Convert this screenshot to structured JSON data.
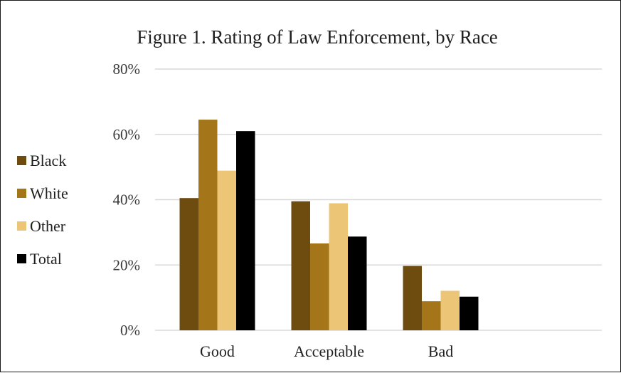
{
  "chart_data": {
    "type": "bar",
    "title": "Figure 1. Rating of Law Enforcement, by Race",
    "xlabel": "",
    "ylabel": "",
    "categories": [
      "Good",
      "Acceptable",
      "Bad"
    ],
    "series": [
      {
        "name": "Black",
        "color": "#6e4c10",
        "values": [
          40.5,
          39.5,
          19.7
        ]
      },
      {
        "name": "White",
        "color": "#a57619",
        "values": [
          64.5,
          26.6,
          8.9
        ]
      },
      {
        "name": "Other",
        "color": "#ecc577",
        "values": [
          48.9,
          38.9,
          12.1
        ]
      },
      {
        "name": "Total",
        "color": "#000000",
        "values": [
          61.0,
          28.7,
          10.3
        ]
      }
    ],
    "ylim": [
      0,
      80
    ],
    "yticks": [
      "0%",
      "20%",
      "40%",
      "60%",
      "80%"
    ],
    "ytick_values": [
      0,
      20,
      40,
      60,
      80
    ],
    "grid": true,
    "gridline_color": "#d9d9d9",
    "legend_position": "left"
  }
}
